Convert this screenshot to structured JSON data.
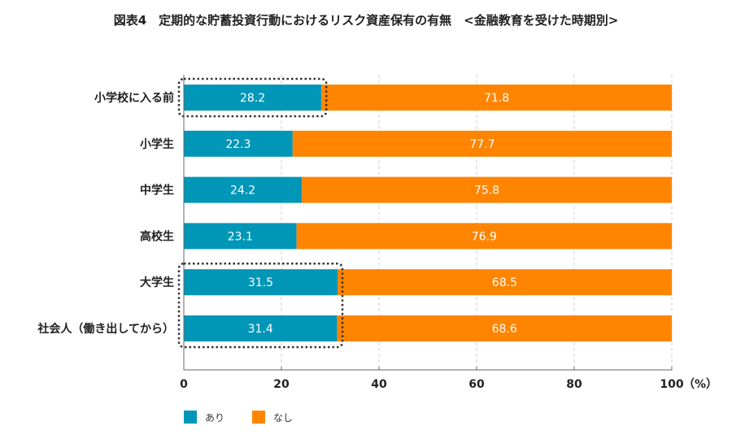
{
  "chart_data": {
    "type": "bar",
    "orientation": "horizontal",
    "stacked": true,
    "title": "図表4　定期的な貯蓄投資行動におけるリスク資産保有の有無　<金融教育を受けた時期別>",
    "categories": [
      "小学校に入る前",
      "小学生",
      "中学生",
      "高校生",
      "大学生",
      "社会人（働き出してから）"
    ],
    "series": [
      {
        "name": "あり",
        "color": "#0096b7",
        "values": [
          28.2,
          22.3,
          24.2,
          23.1,
          31.5,
          31.4
        ]
      },
      {
        "name": "なし",
        "color": "#ff8400",
        "values": [
          71.8,
          77.7,
          75.8,
          76.9,
          68.5,
          68.6
        ]
      }
    ],
    "xlim": [
      0,
      100
    ],
    "xticks": [
      "0",
      "20",
      "40",
      "60",
      "80",
      "100"
    ],
    "xunit": "（%）",
    "grid": true,
    "legend_position": "bottom-left",
    "highlighted_categories": [
      "小学校に入る前",
      "大学生",
      "社会人（働き出してから）"
    ]
  }
}
